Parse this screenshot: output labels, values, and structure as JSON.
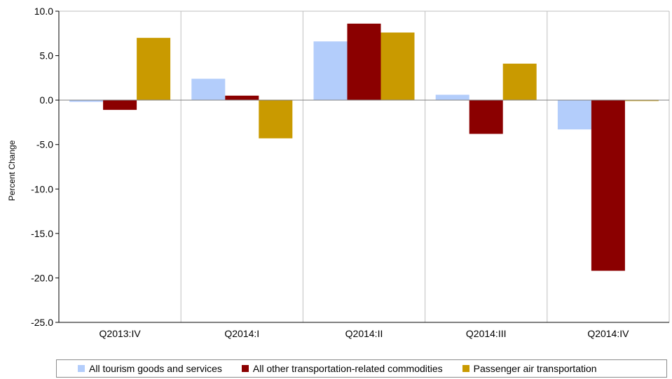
{
  "chart_data": {
    "type": "bar",
    "title": "",
    "xlabel": "",
    "ylabel": "Percent Change",
    "ylim": [
      -25,
      10
    ],
    "yticks": [
      "10.0",
      "5.0",
      "0.0",
      "-5.0",
      "-10.0",
      "-15.0",
      "-20.0",
      "-25.0"
    ],
    "categories": [
      "Q2013:IV",
      "Q2014:I",
      "Q2014:II",
      "Q2014:III",
      "Q2014:IV"
    ],
    "series": [
      {
        "name": "All tourism goods and services",
        "color": "#b3cdfb",
        "values": [
          -0.2,
          2.4,
          6.6,
          0.6,
          -3.3
        ]
      },
      {
        "name": "All other transportation-related commodities",
        "color": "#8b0000",
        "values": [
          -1.1,
          0.5,
          8.6,
          -3.8,
          -19.2
        ]
      },
      {
        "name": "Passenger air transportation",
        "color": "#c99a00",
        "values": [
          7.0,
          -4.3,
          7.6,
          4.1,
          -0.1
        ]
      }
    ],
    "grid": "vertical",
    "legend_position": "bottom"
  }
}
